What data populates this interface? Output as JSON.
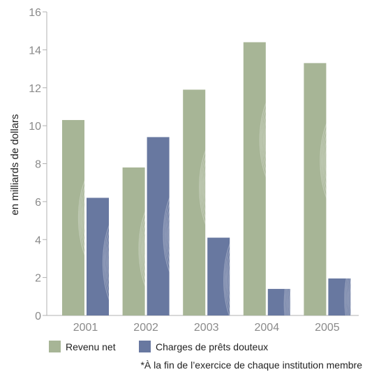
{
  "chart_data": {
    "type": "bar",
    "categories": [
      "2001",
      "2002",
      "2003",
      "2004",
      "2005"
    ],
    "series": [
      {
        "name": "Revenu net",
        "values": [
          10.3,
          7.8,
          11.9,
          14.4,
          13.3
        ],
        "color": "#a7b596"
      },
      {
        "name": "Charges de prêts douteux",
        "values": [
          6.2,
          9.4,
          4.1,
          1.4,
          1.95
        ],
        "color": "#6878a0"
      }
    ],
    "ylabel": "en milliards de dollars",
    "ylim": [
      0,
      16
    ],
    "yticks": [
      0,
      2,
      4,
      6,
      8,
      10,
      12,
      14,
      16
    ],
    "grid": false,
    "legend_position": "bottom-left",
    "axis_color": "#b0b0b0",
    "pattern": "decorative-arcs"
  },
  "footnote": "*À la fin de l’exercice de chaque institution membre"
}
